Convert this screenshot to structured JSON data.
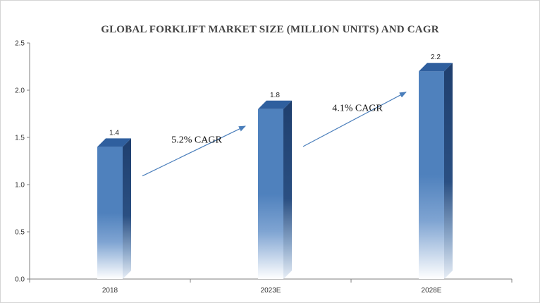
{
  "chart_data": {
    "type": "bar",
    "title": "GLOBAL FORKLIFT  MARKET SIZE  (MILLION UNITS) AND CAGR",
    "categories": [
      "2018",
      "2023E",
      "2028E"
    ],
    "series": [
      {
        "values": [
          1.4,
          1.8,
          2.2
        ]
      }
    ],
    "data_labels": [
      "1.4",
      "1.8",
      "2.2"
    ],
    "ylim": [
      0,
      2.5
    ],
    "yticks": [
      "0.0",
      "0.5",
      "1.0",
      "1.5",
      "2.0",
      "2.5"
    ],
    "yticks_values": [
      0,
      0.5,
      1.0,
      1.5,
      2.0,
      2.5
    ],
    "grid": false,
    "bar_style": "3d-gradient",
    "colors": {
      "bar_top": "#2f5f9e",
      "bar_front": "#4f81bd",
      "bar_side": "#1f3f6e",
      "arrow": "#4a7ebb",
      "axis": "#7f7f7f"
    },
    "annotations": [
      {
        "text": "5.2% CAGR",
        "from_category": "2018",
        "to_category": "2023E"
      },
      {
        "text": "4.1% CAGR",
        "from_category": "2023E",
        "to_category": "2028E"
      }
    ]
  }
}
